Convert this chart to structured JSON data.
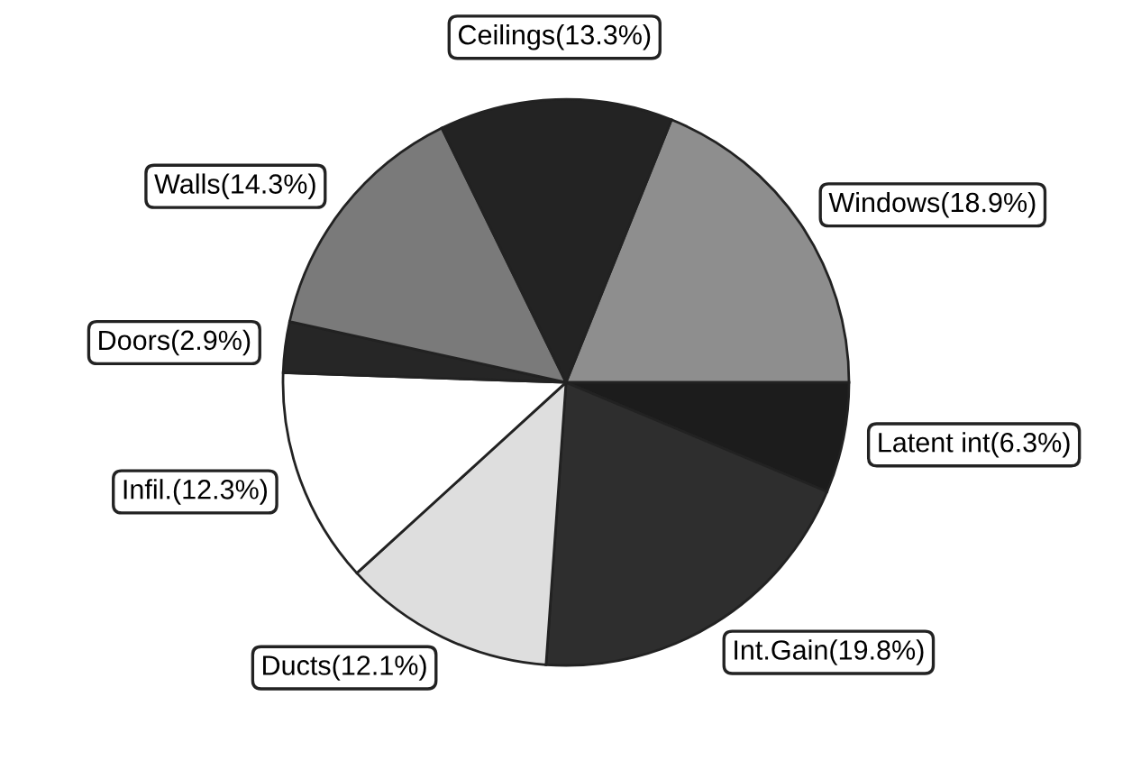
{
  "chart_data": {
    "type": "pie",
    "categories": [
      "Windows(18.9%)",
      "Latent int(6.3%)",
      "Int.Gain(19.8%)",
      "Ducts(12.1%)",
      "Infil.(12.3%)",
      "Doors(2.9%)",
      "Walls(14.3%)",
      "Ceilings(13.3%)"
    ],
    "values": [
      18.9,
      6.3,
      19.8,
      12.1,
      12.3,
      2.9,
      14.3,
      13.3
    ],
    "colors": [
      "#8e8e8e",
      "#1c1c1c",
      "#2e2e2e",
      "#dedede",
      "#ffffff",
      "#262626",
      "#7a7a7a",
      "#232323"
    ]
  }
}
